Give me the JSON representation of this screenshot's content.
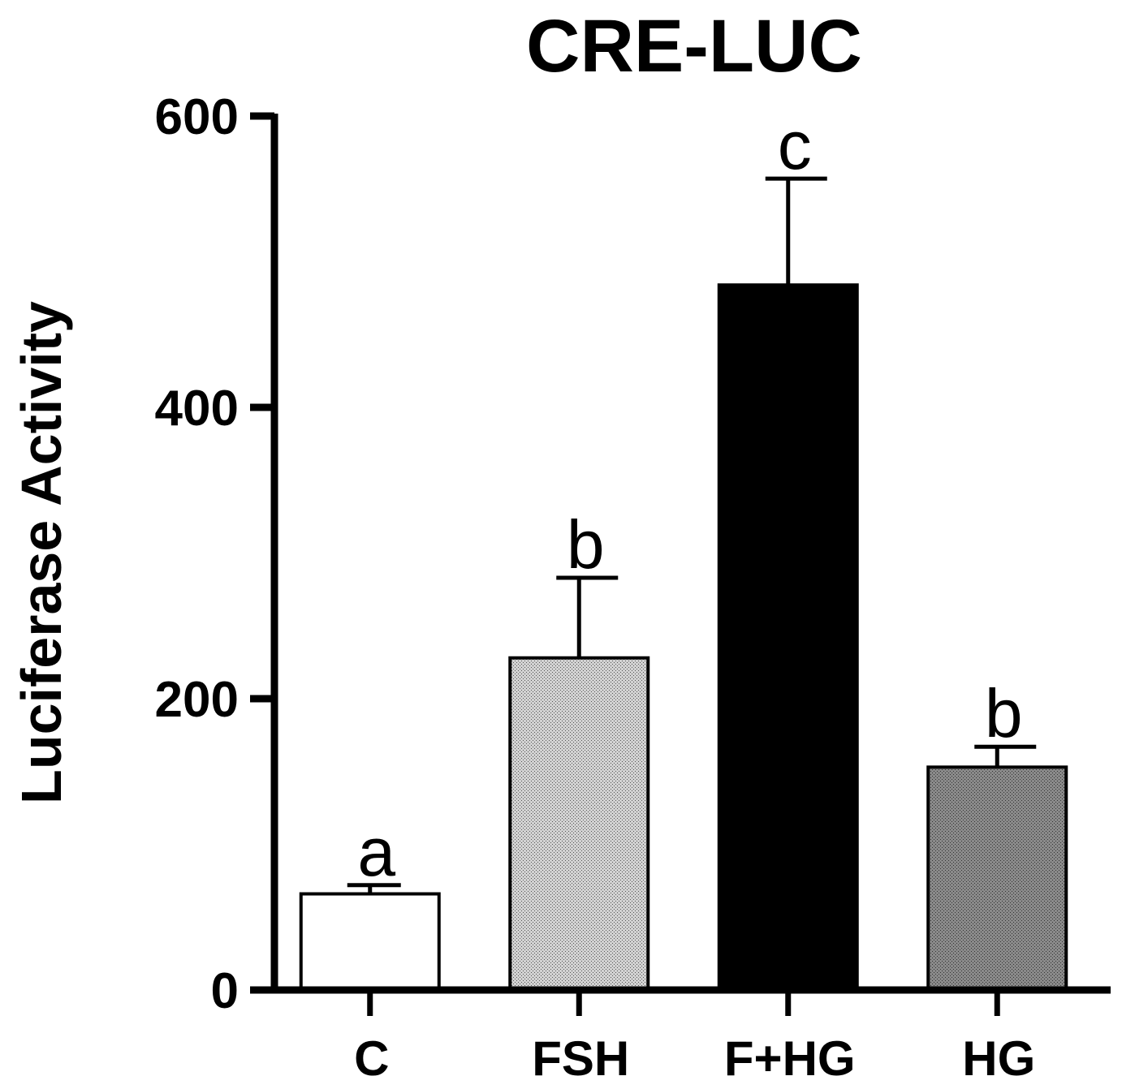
{
  "chart_data": {
    "type": "bar",
    "title": "CRE-LUC",
    "xlabel": "",
    "ylabel": "Luciferase Activity",
    "ylim": [
      0,
      600
    ],
    "yticks": [
      0,
      200,
      400,
      600
    ],
    "grid": false,
    "legend": "none",
    "categories": [
      "C",
      "FSH",
      "F+HG",
      "HG"
    ],
    "series": [
      {
        "values": [
          66,
          228,
          484,
          153
        ],
        "errors": [
          6,
          55,
          73,
          14
        ],
        "significance": [
          "a",
          "b",
          "c",
          "b"
        ],
        "fills": [
          "white",
          "light-gray-stipple",
          "black",
          "dark-gray-stipple"
        ]
      }
    ],
    "colors": {
      "axis": "#000000",
      "bar_edge": "#000000",
      "white": "#ffffff",
      "light_gray": "#bdbdbd",
      "black": "#000000",
      "dark_gray": "#7f7f7f"
    }
  }
}
